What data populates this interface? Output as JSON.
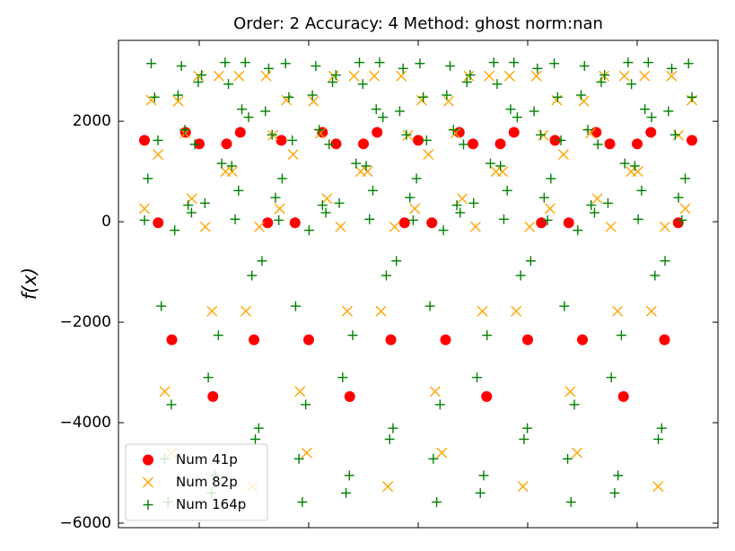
{
  "chart_data": {
    "type": "scatter",
    "title": "Order: 2 Accuracy: 4 Method: ghost norm:nan",
    "y_label": "f(x)",
    "xlim": [
      -7.75,
      170.75
    ],
    "xticks": [
      16.3,
      48.9,
      81.5,
      114.1,
      146.7
    ],
    "ylim": [
      -6090,
      3610
    ],
    "yticks": [
      {
        "value": -6000,
        "label": "−6000"
      },
      {
        "value": -4000,
        "label": "−4000"
      },
      {
        "value": -2000,
        "label": "−2000"
      },
      0,
      2000
    ],
    "legend": "lower left",
    "series": [
      {
        "name": "Num 41p",
        "color": "#ff0000",
        "marker": "o",
        "x": [
          0,
          4.075,
          8.15,
          12.225,
          16.3,
          20.375,
          24.45,
          28.525,
          32.6,
          36.675,
          40.75,
          44.825,
          48.9,
          52.975,
          57.05,
          61.125,
          65.2,
          69.275,
          73.35,
          77.425,
          81.5,
          85.575,
          89.65,
          93.725,
          97.8,
          101.875,
          105.95,
          110.025,
          114.1,
          118.175,
          122.25,
          126.325,
          130.4,
          134.475,
          138.55,
          142.625,
          146.7,
          150.775,
          154.85,
          158.925,
          163
        ],
        "values": [
          1620,
          -20,
          -2350,
          1780,
          1550,
          -3480,
          1550,
          1780,
          -2350,
          -20,
          1620,
          -20,
          -2350,
          1780,
          1550,
          -3480,
          1550,
          1780,
          -2350,
          -20,
          1620,
          -20,
          -2350,
          1780,
          1550,
          -3480,
          1550,
          1780,
          -2350,
          -20,
          1620,
          -20,
          -2350,
          1780,
          1550,
          -3480,
          1550,
          1780,
          -2350,
          -20,
          1620
        ]
      },
      {
        "name": "Num 82p",
        "color": "#ffa500",
        "marker": "x",
        "x": [
          0,
          2.01,
          4.02,
          6.04,
          8.05,
          10.06,
          12.07,
          14.09,
          16.1,
          18.11,
          20.12,
          22.14,
          24.15,
          26.16,
          28.17,
          30.19,
          32.2,
          34.21,
          36.22,
          38.23,
          40.25,
          42.26,
          44.27,
          46.28,
          48.3,
          50.31,
          52.32,
          54.33,
          56.35,
          58.36,
          60.37,
          62.38,
          64.4,
          66.41,
          68.42,
          70.43,
          72.44,
          74.46,
          76.47,
          78.48,
          80.49,
          82.51,
          84.52,
          86.53,
          88.54,
          90.56,
          92.57,
          94.58,
          96.59,
          98.6,
          100.62,
          102.63,
          104.64,
          106.65,
          108.67,
          110.68,
          112.69,
          114.7,
          116.72,
          118.73,
          120.74,
          122.75,
          124.77,
          126.78,
          128.79,
          130.8,
          132.81,
          134.83,
          136.84,
          138.85,
          140.86,
          142.88,
          144.89,
          146.9,
          148.91,
          150.93,
          152.94,
          154.95,
          156.96,
          158.98,
          160.99,
          163
        ],
        "values": [
          260,
          2420,
          1340,
          -3380,
          -4600,
          2400,
          1760,
          460,
          2900,
          -100,
          -1780,
          2900,
          1000,
          1000,
          2900,
          -1780,
          -5270,
          -100,
          2900,
          1720,
          260,
          2420,
          1340,
          -3380,
          -4600,
          2400,
          1760,
          460,
          2900,
          -100,
          -1780,
          2900,
          1000,
          1000,
          2900,
          -1780,
          -5270,
          -100,
          2900,
          1720,
          260,
          2420,
          1340,
          -3380,
          -4600,
          2400,
          1760,
          460,
          2900,
          -100,
          -1780,
          2900,
          1000,
          1000,
          2900,
          -1780,
          -5270,
          -100,
          2900,
          1720,
          260,
          2420,
          1340,
          -3380,
          -4600,
          2400,
          1760,
          460,
          2900,
          -100,
          -1780,
          2900,
          1000,
          1000,
          2900,
          -1780,
          -5270,
          -100,
          2900,
          1720,
          260,
          2420
        ]
      },
      {
        "name": "Num 164p",
        "color": "#008000",
        "marker": "+",
        "x": [
          0,
          1,
          2,
          3,
          4,
          5,
          6,
          7,
          8,
          9,
          10,
          11,
          12,
          13,
          14,
          15,
          16,
          17,
          18,
          19,
          20,
          21,
          22,
          23,
          24,
          25,
          26,
          27,
          28,
          29,
          30,
          31,
          32,
          33,
          34,
          35,
          36,
          37,
          38,
          39,
          40,
          41,
          42,
          43,
          44,
          45,
          46,
          47,
          48,
          49,
          50,
          51,
          52,
          53,
          54,
          55,
          56,
          57,
          58,
          59,
          60,
          61,
          62,
          63,
          64,
          65,
          66,
          67,
          68,
          69,
          70,
          71,
          72,
          73,
          74,
          75,
          76,
          77,
          78,
          79,
          80,
          81,
          82,
          83,
          84,
          85,
          86,
          87,
          88,
          89,
          90,
          91,
          92,
          93,
          94,
          95,
          96,
          97,
          98,
          99,
          100,
          101,
          102,
          103,
          104,
          105,
          106,
          107,
          108,
          109,
          110,
          111,
          112,
          113,
          114,
          115,
          116,
          117,
          118,
          119,
          120,
          121,
          122,
          123,
          124,
          125,
          126,
          127,
          128,
          129,
          130,
          131,
          132,
          133,
          134,
          135,
          136,
          137,
          138,
          139,
          140,
          141,
          142,
          143,
          144,
          145,
          146,
          147,
          148,
          149,
          150,
          151,
          152,
          153,
          154,
          155,
          156,
          157,
          158,
          159,
          160,
          161,
          162,
          163
        ],
        "values": [
          30,
          860,
          3150,
          2480,
          1620,
          -1680,
          -4720,
          -5580,
          -3640,
          -170,
          2520,
          3100,
          1830,
          330,
          180,
          1540,
          2780,
          2920,
          370,
          -3100,
          -5400,
          -5050,
          -2260,
          1160,
          3170,
          2740,
          1110,
          50,
          620,
          2240,
          3170,
          2080,
          -1070,
          -4330,
          -4110,
          -780,
          2200,
          3050,
          1730,
          480,
          30,
          860,
          3150,
          2480,
          1620,
          -1680,
          -4720,
          -5580,
          -3640,
          -170,
          2520,
          3100,
          1830,
          330,
          180,
          1540,
          2780,
          2920,
          370,
          -3100,
          -5400,
          -5050,
          -2260,
          1160,
          3170,
          2740,
          1110,
          50,
          620,
          2240,
          3170,
          2080,
          -1070,
          -4330,
          -4110,
          -780,
          2200,
          3050,
          1730,
          480,
          30,
          860,
          3150,
          2480,
          1620,
          -1680,
          -4720,
          -5580,
          -3640,
          -170,
          2520,
          3100,
          1830,
          330,
          180,
          1540,
          2780,
          2920,
          370,
          -3100,
          -5400,
          -5050,
          -2260,
          1160,
          3170,
          2740,
          1110,
          50,
          620,
          2240,
          3170,
          2080,
          -1070,
          -4330,
          -4110,
          -780,
          2200,
          3050,
          1730,
          480,
          30,
          860,
          3150,
          2480,
          1620,
          -1680,
          -4720,
          -5580,
          -3640,
          -170,
          2520,
          3100,
          1830,
          330,
          180,
          1540,
          2780,
          2920,
          370,
          -3100,
          -5400,
          -5050,
          -2260,
          1160,
          3170,
          2740,
          1110,
          50,
          620,
          2240,
          3170,
          2080,
          -1070,
          -4330,
          -4110,
          -780,
          2200,
          3050,
          1730,
          480,
          30,
          860,
          3150,
          2480
        ]
      }
    ]
  }
}
